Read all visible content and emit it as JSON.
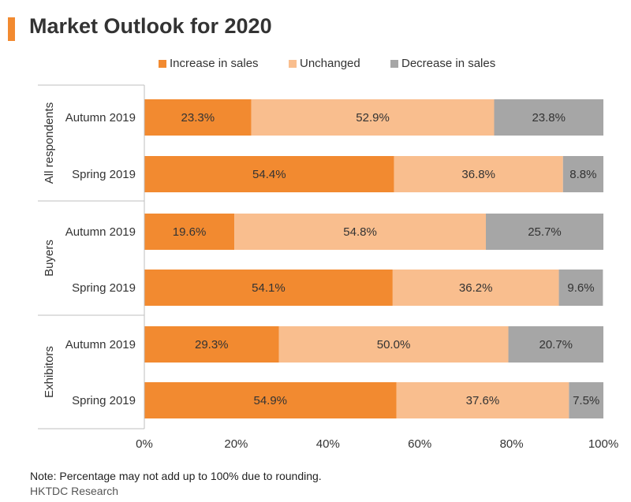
{
  "title": "Market Outlook for 2020",
  "colors": {
    "accent": "#F28A30",
    "increase": "#F28A30",
    "unchanged": "#F9BE8E",
    "decrease": "#A6A6A6"
  },
  "chart_data": {
    "type": "bar",
    "orientation": "horizontal",
    "stacked": true,
    "title": "Market Outlook for 2020",
    "xlim": [
      0,
      100
    ],
    "x_ticks": [
      "0%",
      "20%",
      "40%",
      "60%",
      "80%",
      "100%"
    ],
    "legend_position": "top",
    "grid": false,
    "groups": [
      {
        "label": "All respondents",
        "rows": [
          {
            "label": "Autumn 2019",
            "values": [
              23.3,
              52.9,
              23.8
            ]
          },
          {
            "label": "Spring 2019",
            "values": [
              54.4,
              36.8,
              8.8
            ]
          }
        ]
      },
      {
        "label": "Buyers",
        "rows": [
          {
            "label": "Autumn 2019",
            "values": [
              19.6,
              54.8,
              25.7
            ]
          },
          {
            "label": "Spring 2019",
            "values": [
              54.1,
              36.2,
              9.6
            ]
          }
        ]
      },
      {
        "label": "Exhibitors",
        "rows": [
          {
            "label": "Autumn 2019",
            "values": [
              29.3,
              50.0,
              20.7
            ]
          },
          {
            "label": "Spring 2019",
            "values": [
              54.9,
              37.6,
              7.5
            ]
          }
        ]
      }
    ],
    "series": [
      {
        "name": "Increase in sales",
        "color": "#F28A30"
      },
      {
        "name": "Unchanged",
        "color": "#F9BE8E"
      },
      {
        "name": "Decrease in sales",
        "color": "#A6A6A6"
      }
    ]
  },
  "note": "Note: Percentage may not add up to 100% due to rounding.",
  "source": "HKTDC Research"
}
